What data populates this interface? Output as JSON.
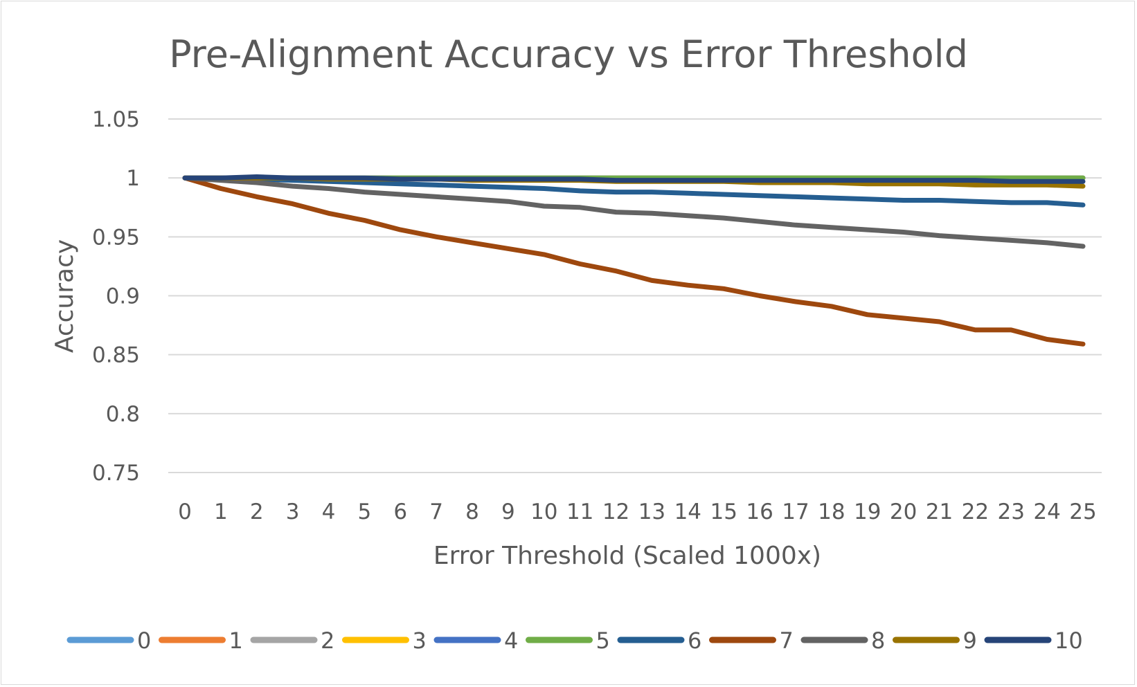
{
  "chart_data": {
    "type": "line",
    "title": "Pre-Alignment Accuracy vs Error Threshold",
    "xlabel": "Error Threshold (Scaled 1000x)",
    "ylabel": "Accuracy",
    "categories": [
      "0",
      "1",
      "2",
      "3",
      "4",
      "5",
      "6",
      "7",
      "8",
      "9",
      "10",
      "11",
      "12",
      "13",
      "14",
      "15",
      "16",
      "17",
      "18",
      "19",
      "20",
      "21",
      "22",
      "23",
      "24",
      "25"
    ],
    "ylim": [
      0.75,
      1.05
    ],
    "yticks": [
      "0.75",
      "0.8",
      "0.85",
      "0.9",
      "0.95",
      "1",
      "1.05"
    ],
    "grid": true,
    "legend_position": "bottom",
    "series": [
      {
        "name": "0",
        "color": "#5b9bd5",
        "values": [
          1,
          1,
          1,
          1,
          1,
          1,
          1,
          1,
          1,
          1,
          1,
          1,
          1,
          1,
          1,
          1,
          1,
          1,
          1,
          1,
          1,
          1,
          1,
          1,
          1,
          1
        ]
      },
      {
        "name": "1",
        "color": "#ed7d31",
        "values": [
          1,
          1,
          1,
          1,
          1,
          1,
          1,
          1,
          1,
          1,
          1,
          1,
          1,
          1,
          1,
          1,
          1,
          1,
          1,
          1,
          1,
          1,
          1,
          1,
          1,
          1
        ]
      },
      {
        "name": "2",
        "color": "#a5a5a5",
        "values": [
          1,
          1,
          1,
          1,
          1,
          1,
          1,
          1,
          1,
          1,
          1,
          1,
          1,
          1,
          1,
          1,
          1,
          1,
          1,
          1,
          1,
          1,
          1,
          1,
          1,
          1
        ]
      },
      {
        "name": "3",
        "color": "#ffc000",
        "values": [
          1,
          1,
          1,
          1,
          1,
          1,
          1,
          1,
          1,
          1,
          1,
          1,
          1,
          1,
          1,
          1,
          1,
          1,
          1,
          1,
          1,
          1,
          1,
          1,
          1,
          1
        ]
      },
      {
        "name": "4",
        "color": "#4472c4",
        "values": [
          1,
          1,
          1,
          1,
          1,
          1,
          1,
          1,
          1,
          1,
          1,
          1,
          1,
          1,
          1,
          1,
          1,
          1,
          1,
          1,
          1,
          1,
          1,
          1,
          1,
          1
        ]
      },
      {
        "name": "5",
        "color": "#70ad47",
        "values": [
          1,
          1,
          1,
          1,
          1,
          1,
          1,
          1,
          1,
          1,
          1,
          1,
          1,
          1,
          1,
          1,
          1,
          1,
          1,
          1,
          1,
          1,
          1,
          1,
          1,
          1
        ]
      },
      {
        "name": "6",
        "color": "#255e91",
        "values": [
          1,
          1,
          0.999,
          0.998,
          0.997,
          0.996,
          0.995,
          0.994,
          0.993,
          0.992,
          0.991,
          0.989,
          0.988,
          0.988,
          0.987,
          0.986,
          0.985,
          0.984,
          0.983,
          0.982,
          0.981,
          0.981,
          0.98,
          0.979,
          0.979,
          0.977
        ]
      },
      {
        "name": "7",
        "color": "#9e480e",
        "values": [
          1,
          0.991,
          0.984,
          0.978,
          0.97,
          0.964,
          0.956,
          0.95,
          0.945,
          0.94,
          0.935,
          0.927,
          0.921,
          0.913,
          0.909,
          0.906,
          0.9,
          0.895,
          0.891,
          0.884,
          0.881,
          0.878,
          0.871,
          0.871,
          0.863,
          0.859
        ]
      },
      {
        "name": "8",
        "color": "#636363",
        "values": [
          1,
          0.998,
          0.996,
          0.993,
          0.991,
          0.988,
          0.986,
          0.984,
          0.982,
          0.98,
          0.976,
          0.975,
          0.971,
          0.97,
          0.968,
          0.966,
          0.963,
          0.96,
          0.958,
          0.956,
          0.954,
          0.951,
          0.949,
          0.947,
          0.945,
          0.942
        ]
      },
      {
        "name": "9",
        "color": "#997300",
        "values": [
          1,
          1,
          1,
          1,
          0.999,
          0.999,
          0.999,
          0.999,
          0.998,
          0.998,
          0.998,
          0.998,
          0.997,
          0.997,
          0.997,
          0.997,
          0.996,
          0.996,
          0.996,
          0.995,
          0.995,
          0.995,
          0.994,
          0.994,
          0.994,
          0.993
        ]
      },
      {
        "name": "10",
        "color": "#264478",
        "values": [
          1,
          1,
          1.001,
          1,
          1,
          1,
          0.999,
          0.999,
          0.999,
          0.999,
          0.999,
          0.999,
          0.998,
          0.998,
          0.998,
          0.998,
          0.998,
          0.998,
          0.998,
          0.998,
          0.998,
          0.998,
          0.998,
          0.997,
          0.997,
          0.997
        ]
      }
    ]
  }
}
